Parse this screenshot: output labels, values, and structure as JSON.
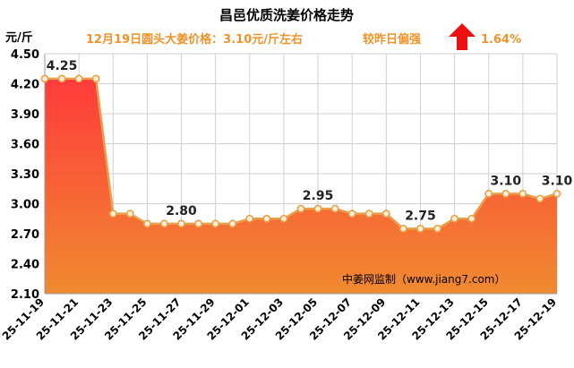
{
  "chart_data": {
    "type": "area",
    "title": "昌邑优质洗姜价格走势",
    "subtitle": "12月19日圆头大姜价格：3.10元/斤左右",
    "change_label": "较昨日偏强",
    "change_value": "1.64%",
    "ylabel": "元/斤",
    "watermark": "中姜网监制（www.jiang7.com）",
    "ylim": [
      2.1,
      4.5
    ],
    "yticks": [
      "4.50",
      "4.20",
      "3.90",
      "3.60",
      "3.30",
      "3.00",
      "2.70",
      "2.40",
      "2.10"
    ],
    "x": [
      "25-11-19",
      "25-11-20",
      "25-11-21",
      "25-11-22",
      "25-11-23",
      "25-11-24",
      "25-11-25",
      "25-11-26",
      "25-11-27",
      "25-11-28",
      "25-11-29",
      "25-11-30",
      "25-12-01",
      "25-12-02",
      "25-12-03",
      "25-12-04",
      "25-12-05",
      "25-12-06",
      "25-12-07",
      "25-12-08",
      "25-12-09",
      "25-12-10",
      "25-12-11",
      "25-12-12",
      "25-12-13",
      "25-12-14",
      "25-12-15",
      "25-12-16",
      "25-12-17",
      "25-12-18",
      "25-12-19"
    ],
    "xtick_labels": [
      "25-11-19",
      "25-11-21",
      "25-11-23",
      "25-11-25",
      "25-11-27",
      "25-11-29",
      "25-12-01",
      "25-12-03",
      "25-12-05",
      "25-12-07",
      "25-12-09",
      "25-12-11",
      "25-12-13",
      "25-12-15",
      "25-12-17",
      "25-12-19"
    ],
    "values": [
      4.25,
      4.25,
      4.25,
      4.25,
      2.9,
      2.9,
      2.8,
      2.8,
      2.8,
      2.8,
      2.8,
      2.8,
      2.85,
      2.85,
      2.85,
      2.95,
      2.95,
      2.95,
      2.9,
      2.9,
      2.9,
      2.75,
      2.75,
      2.75,
      2.85,
      2.85,
      3.1,
      3.1,
      3.1,
      3.05,
      3.1
    ],
    "data_labels": [
      {
        "index": 1,
        "text": "4.25"
      },
      {
        "index": 8,
        "text": "2.80"
      },
      {
        "index": 16,
        "text": "2.95"
      },
      {
        "index": 22,
        "text": "2.75"
      },
      {
        "index": 27,
        "text": "3.10"
      },
      {
        "index": 30,
        "text": "3.10"
      }
    ],
    "grid": true,
    "colors": {
      "line": "#e8a04a",
      "marker_fill": "#fdf0d8",
      "area_top": "#ff3b3b",
      "area_bottom": "#f08a30",
      "subtitle": "#f0932b",
      "arrow": "#ee1111",
      "grid": "#d0d0d0",
      "title": "#000000"
    }
  }
}
